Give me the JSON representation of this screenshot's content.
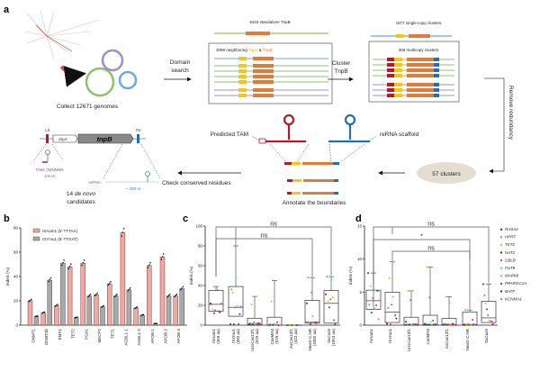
{
  "panel_a": {
    "label": "a",
    "collect": "Collect 12671 genomes",
    "domain_search": [
      "Domain",
      "search"
    ],
    "standalone": "8433 standalone TnpB",
    "neighboring_prefix": "3098 neighboring ",
    "neighboring_tnpa": "TnpA",
    "neighboring_amp": " & ",
    "neighboring_tnpb": "TnpB",
    "cluster": [
      "Cluster",
      "TnpB"
    ],
    "single_copy": "1877 single-copy clusters",
    "multicopy": "386 multicopy clusters",
    "remove_redundancy": "Remove redundancy",
    "clusters57": "57 clusters",
    "annotate": "Annotate the boundaries",
    "predicted_tam": "Predicted TAM",
    "rerna_scaffold": "reRNA scaffold",
    "check": "Check conserved residues",
    "le": "LE",
    "re": "RE",
    "tnpa": "tnpA",
    "tnpb": "tnpB",
    "tam": "TAM: (N)NNNN",
    "tam_len": "4-5 nt",
    "rerna": "reRNA:",
    "rerna_len": "~ 200 nt",
    "candidates_1": "14 ",
    "candidates_italic": "de novo",
    "candidates_2": "candidates",
    "colors": {
      "tnpa": "#f5c518",
      "tnpb": "#e07b39",
      "le": "#b01c2e",
      "re": "#1f6fb2",
      "green": "#8fc06b",
      "purple": "#9b8fd0",
      "blue": "#6fa8dc"
    }
  },
  "chart_data": [
    {
      "panel": "b",
      "type": "bar",
      "ylabel": "Indels (%)",
      "ylim": [
        0,
        80
      ],
      "yticks": [
        0,
        20,
        40,
        60,
        80
      ],
      "legend_placement": "top-left",
      "categories": [
        "DNMT1",
        "DNMT3b",
        "EMX1",
        "TET2",
        "PGK1",
        "MECP2",
        "TET1",
        "AGBL1-1",
        "AGBL1-2",
        "APOB-1",
        "APOB-2",
        "APOB-3"
      ],
      "series": [
        {
          "name": "ISAam1 (5'-TTTAA)",
          "color": "#f4a6a0",
          "values": [
            20,
            10,
            16,
            48,
            51,
            25,
            34,
            76,
            14,
            49,
            56,
            24
          ]
        },
        {
          "name": "ISYmu1 (5'-TTGAT)",
          "color": "#a9a9a9",
          "values": [
            7,
            37,
            51,
            6,
            24,
            15,
            24,
            29,
            8,
            1,
            24,
            30
          ]
        }
      ]
    },
    {
      "panel": "c",
      "type": "box",
      "ylabel": "Indels (%)",
      "ylim": [
        0,
        100
      ],
      "yticks": [
        0,
        20,
        40,
        60,
        80,
        100
      ],
      "categories": [
        "ISAam1",
        "ISYmu1",
        "Un1Cas12f1",
        "CasMINI",
        "AsCas12f1",
        "Nme2-C.NR",
        "SaCas9"
      ],
      "sublabels": [
        "(369 aa)",
        "(382 aa)",
        "(529 aa)",
        "(529 aa)",
        "(422 aa)",
        "(1082 aa)",
        "(1053 aa)"
      ],
      "boxes": [
        {
          "min": 12,
          "q1": 14,
          "median": 21,
          "q3": 35,
          "max": 39,
          "points": [
            22,
            21,
            16,
            12,
            15,
            38,
            36,
            14,
            13,
            22
          ]
        },
        {
          "min": 0,
          "q1": 9,
          "median": 18,
          "q3": 39,
          "max": 80,
          "points": [
            1,
            36,
            33,
            1,
            18,
            48,
            19,
            1,
            11,
            19
          ]
        },
        {
          "min": 0,
          "q1": 0,
          "median": 1,
          "q3": 7,
          "max": 29,
          "points": [
            1,
            2,
            21,
            1,
            3,
            1,
            2,
            1,
            2,
            2
          ]
        },
        {
          "min": 0,
          "q1": 0,
          "median": 0,
          "q3": 8,
          "max": 45,
          "points": [
            0,
            1,
            24,
            0,
            1,
            0,
            1,
            3,
            0,
            0
          ]
        },
        {
          "min": 0,
          "q1": 0,
          "median": 0,
          "q3": 0,
          "max": 0,
          "points": [
            0,
            0,
            0,
            0,
            0,
            0,
            0,
            0,
            0,
            0
          ]
        },
        {
          "min": 0,
          "q1": 2,
          "median": 3,
          "q3": 25,
          "max": 48,
          "points": [
            22,
            48,
            3,
            1,
            33,
            9,
            2,
            3,
            2,
            3
          ]
        },
        {
          "min": 0,
          "q1": 2,
          "median": 22,
          "q3": 35,
          "max": 49,
          "points": [
            31,
            49,
            24,
            18,
            26,
            46,
            28,
            5,
            1,
            0
          ]
        }
      ],
      "comparisons": [
        {
          "from": "ISAam1",
          "to": "SaCas9",
          "label": "ns"
        },
        {
          "from": "ISAam1",
          "to": "Nme2-C.NR",
          "label": "ns"
        }
      ]
    },
    {
      "panel": "d",
      "type": "box",
      "ylabel": "Indels (%)",
      "ylim": [
        0,
        15
      ],
      "yticks": [
        0,
        5,
        10,
        15
      ],
      "categories": [
        "ISAam1",
        "ISYmu1",
        "Un1Cas12f1",
        "CasMINI",
        "AsCas12f1",
        "Nme2-C.NR",
        "SaCas9"
      ],
      "boxes": [
        {
          "min": 0.9,
          "q1": 2.4,
          "median": 3.7,
          "q3": 5.3,
          "max": 7.9,
          "points": [
            7.9,
            3.1,
            5.9,
            1.9,
            4.1,
            5.3,
            2.5,
            3.0,
            5.2,
            0.9
          ]
        },
        {
          "min": 0,
          "q1": 0.4,
          "median": 2.0,
          "q3": 5.0,
          "max": 9.6,
          "points": [
            0.2,
            2.6,
            7.1,
            0.1,
            3.1,
            4.3,
            9.6,
            1.5,
            1.0,
            0.4
          ]
        },
        {
          "min": 0,
          "q1": 0,
          "median": 0.1,
          "q3": 1.2,
          "max": 5.2,
          "points": [
            0.5,
            0.1,
            5.2,
            0.1,
            3.8,
            0.1,
            0.2,
            0.1,
            0.1,
            0.2
          ]
        },
        {
          "min": 0,
          "q1": 0,
          "median": 0.1,
          "q3": 1.5,
          "max": 8.8,
          "points": [
            0.2,
            0.2,
            8.8,
            0.1,
            4.2,
            0.5,
            0.1,
            0.7,
            0.1,
            0.2
          ]
        },
        {
          "min": 0,
          "q1": 0,
          "median": 0.1,
          "q3": 1.0,
          "max": 4.3,
          "points": [
            0.1,
            0.2,
            4.3,
            0.1,
            0.1,
            3.4,
            0.1,
            0.1,
            0.2,
            0.1
          ]
        },
        {
          "min": 0,
          "q1": 0,
          "median": 0.1,
          "q3": 2.0,
          "max": 2.3,
          "points": [
            0.1,
            2.3,
            0.1,
            0.1,
            0.1,
            2.1,
            0.1,
            0.8,
            0.1,
            0.1
          ]
        },
        {
          "min": 0,
          "q1": 0.4,
          "median": 1.1,
          "q3": 3.6,
          "max": 6.2,
          "points": [
            6.2,
            4.5,
            3.3,
            2.4,
            1.5,
            0.7,
            0.5,
            0.6,
            0.1,
            0.3
          ]
        }
      ],
      "comparisons": [
        {
          "from": "ISAam1",
          "to": "SaCas9",
          "label": "ns"
        },
        {
          "from": "ISAam1",
          "to": "Nme2-C.NR",
          "label": "*"
        },
        {
          "from": "ISYmu1",
          "to": "Nme2-C.NR",
          "label": "ns"
        }
      ],
      "legend": [
        {
          "name": "RASA2",
          "color": "#8b1a1a"
        },
        {
          "name": "HPRT",
          "color": "#2ecc40"
        },
        {
          "name": "TET2",
          "color": "#d4c020"
        },
        {
          "name": "NAT2",
          "color": "#7b2a8a"
        },
        {
          "name": "CBLB",
          "color": "#a0724a"
        },
        {
          "name": "FUT8",
          "color": "#3ad6e0"
        },
        {
          "name": "MAPK8",
          "color": "#f0a030"
        },
        {
          "name": "PPARGC1A",
          "color": "#e03030"
        },
        {
          "name": "BATF",
          "color": "#1f3fc0"
        },
        {
          "name": "KCNMA1",
          "color": "#e060e0"
        }
      ]
    }
  ],
  "panel_labels": {
    "b": "b",
    "c": "c",
    "d": "d"
  }
}
